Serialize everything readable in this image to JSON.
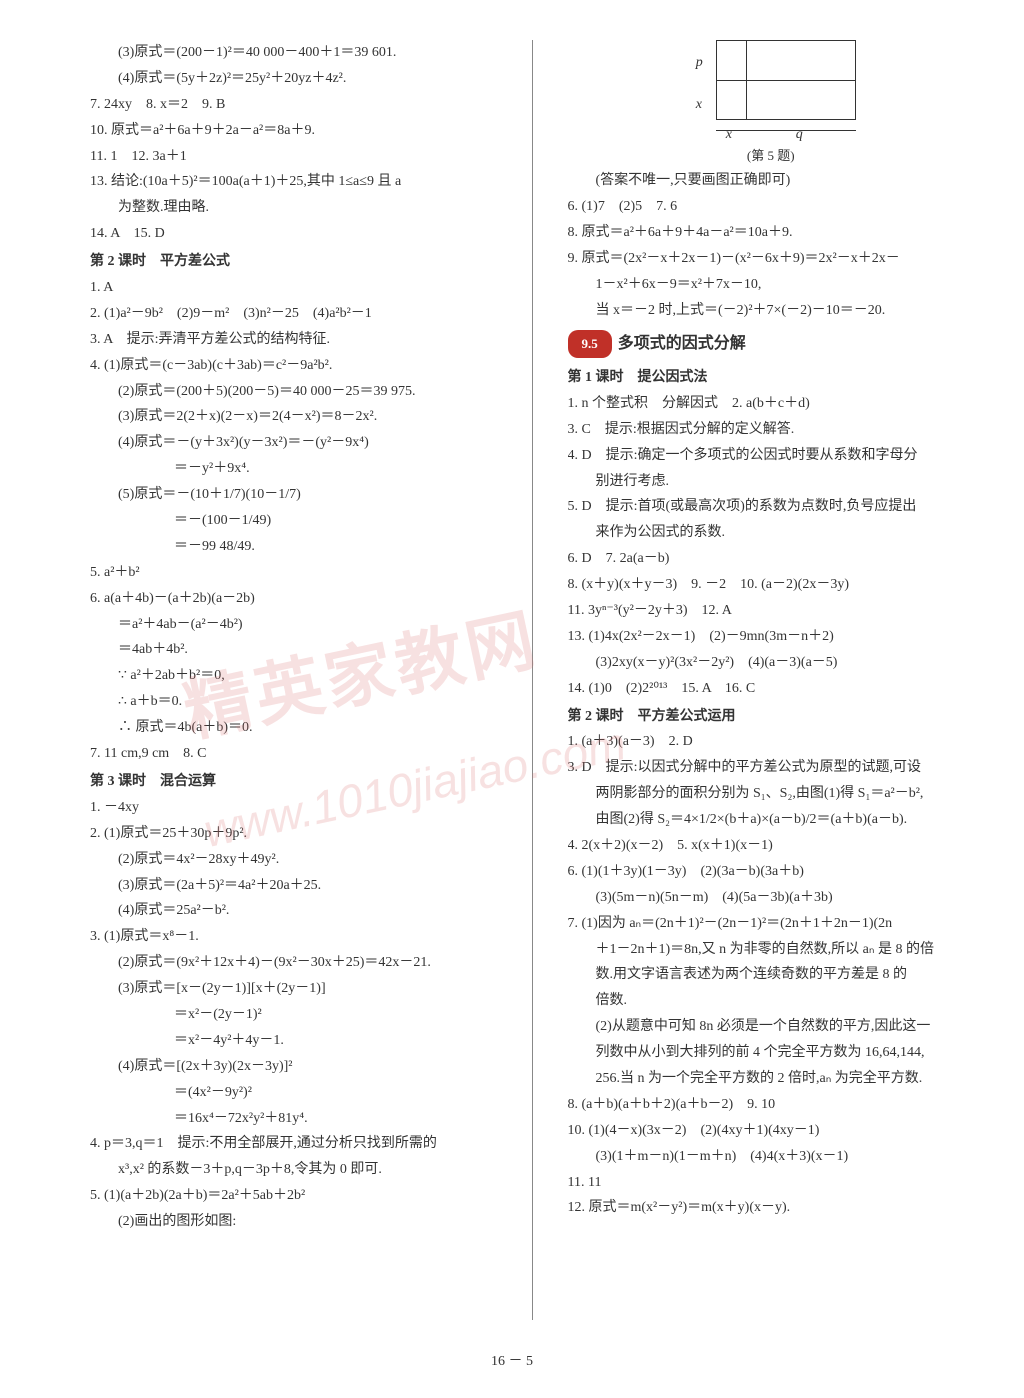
{
  "watermark_main": "精英家教网",
  "watermark_url": "www.1010jiajiao.com",
  "page_number": "16 － 5",
  "diagram": {
    "caption": "(第 5 题)",
    "p": "p",
    "x": "x",
    "q": "q"
  },
  "left_col": [
    {
      "t": "(3)原式＝(200－1)²＝40 000－400＋1＝39 601.",
      "c": "indent"
    },
    {
      "t": "(4)原式＝(5y＋2z)²＝25y²＋20yz＋4z².",
      "c": "indent"
    },
    {
      "t": "7. 24xy　8. x＝2　9. B"
    },
    {
      "t": "10. 原式＝a²＋6a＋9＋2a－a²＝8a＋9."
    },
    {
      "t": "11. 1　12. 3a＋1"
    },
    {
      "t": "13. 结论:(10a＋5)²＝100a(a＋1)＋25,其中 1≤a≤9 且 a"
    },
    {
      "t": "为整数.理由略.",
      "c": "indent"
    },
    {
      "t": "14. A　15. D"
    },
    {
      "t": "第 2 课时　平方差公式",
      "c": "section-hdr"
    },
    {
      "t": "1. A"
    },
    {
      "t": "2. (1)a²－9b²　(2)9－m²　(3)n²－25　(4)a²b²－1"
    },
    {
      "t": "3. A　提示:弄清平方差公式的结构特征."
    },
    {
      "t": "4. (1)原式＝(c－3ab)(c＋3ab)＝c²－9a²b²."
    },
    {
      "t": "(2)原式＝(200＋5)(200－5)＝40 000－25＝39 975.",
      "c": "indent"
    },
    {
      "t": "(3)原式＝2(2＋x)(2－x)＝2(4－x²)＝8－2x².",
      "c": "indent"
    },
    {
      "t": "(4)原式＝－(y＋3x²)(y－3x²)＝－(y²－9x⁴)",
      "c": "indent"
    },
    {
      "t": "＝－y²＋9x⁴.",
      "c": "indent3"
    },
    {
      "t": "(5)原式＝－(10＋1/7)(10－1/7)",
      "c": "indent"
    },
    {
      "t": "＝－(100－1/49)",
      "c": "indent3"
    },
    {
      "t": "＝－99 48/49.",
      "c": "indent3"
    },
    {
      "t": "5. a²＋b²"
    },
    {
      "t": "6. a(a＋4b)－(a＋2b)(a－2b)"
    },
    {
      "t": "＝a²＋4ab－(a²－4b²)",
      "c": "indent"
    },
    {
      "t": "＝4ab＋4b².",
      "c": "indent"
    },
    {
      "t": "∵ a²＋2ab＋b²＝0,",
      "c": "indent"
    },
    {
      "t": "∴ a＋b＝0.",
      "c": "indent"
    },
    {
      "t": "∴ 原式＝4b(a＋b)＝0.",
      "c": "indent"
    },
    {
      "t": "7. 11 cm,9 cm　8. C"
    },
    {
      "t": "第 3 课时　混合运算",
      "c": "section-hdr"
    },
    {
      "t": "1. －4xy"
    },
    {
      "t": "2. (1)原式＝25＋30p＋9p²."
    },
    {
      "t": "(2)原式＝4x²－28xy＋49y².",
      "c": "indent"
    },
    {
      "t": "(3)原式＝(2a＋5)²＝4a²＋20a＋25.",
      "c": "indent"
    },
    {
      "t": "(4)原式＝25a²－b².",
      "c": "indent"
    },
    {
      "t": "3. (1)原式＝x⁸－1."
    },
    {
      "t": "(2)原式＝(9x²＋12x＋4)－(9x²－30x＋25)＝42x－21.",
      "c": "indent"
    },
    {
      "t": "(3)原式＝[x－(2y－1)][x＋(2y－1)]",
      "c": "indent"
    },
    {
      "t": "＝x²－(2y－1)²",
      "c": "indent3"
    },
    {
      "t": "＝x²－4y²＋4y－1.",
      "c": "indent3"
    },
    {
      "t": "(4)原式＝[(2x＋3y)(2x－3y)]²",
      "c": "indent"
    },
    {
      "t": "＝(4x²－9y²)²",
      "c": "indent3"
    },
    {
      "t": "＝16x⁴－72x²y²＋81y⁴.",
      "c": "indent3"
    },
    {
      "t": "4. p＝3,q＝1　提示:不用全部展开,通过分析只找到所需的"
    },
    {
      "t": "x³,x² 的系数－3＋p,q－3p＋8,令其为 0 即可.",
      "c": "indent"
    },
    {
      "t": "5. (1)(a＋2b)(2a＋b)＝2a²＋5ab＋2b²"
    },
    {
      "t": "(2)画出的图形如图:",
      "c": "indent"
    }
  ],
  "right_col": [
    {
      "t": "(答案不唯一,只要画图正确即可)",
      "c": "indent"
    },
    {
      "t": "6. (1)7　(2)5　7. 6"
    },
    {
      "t": "8. 原式＝a²＋6a＋9＋4a－a²＝10a＋9."
    },
    {
      "t": "9. 原式＝(2x²－x＋2x－1)－(x²－6x＋9)＝2x²－x＋2x－"
    },
    {
      "t": "1－x²＋6x－9＝x²＋7x－10,",
      "c": "indent"
    },
    {
      "t": "当 x＝－2 时,上式＝(－2)²＋7×(－2)－10＝－20.",
      "c": "indent"
    },
    {
      "t": "RED_TITLE"
    },
    {
      "t": "第 1 课时　提公因式法",
      "c": "section-hdr"
    },
    {
      "t": "1. n 个整式积　分解因式　2. a(b＋c＋d)"
    },
    {
      "t": "3. C　提示:根据因式分解的定义解答."
    },
    {
      "t": "4. D　提示:确定一个多项式的公因式时要从系数和字母分"
    },
    {
      "t": "别进行考虑.",
      "c": "indent"
    },
    {
      "t": "5. D　提示:首项(或最高次项)的系数为点数时,负号应提出"
    },
    {
      "t": "来作为公因式的系数.",
      "c": "indent"
    },
    {
      "t": "6. D　7. 2a(a－b)"
    },
    {
      "t": "8. (x＋y)(x＋y－3)　9. －2　10. (a－2)(2x－3y)"
    },
    {
      "t": "11. 3yⁿ⁻³(y²－2y＋3)　12. A"
    },
    {
      "t": "13. (1)4x(2x²－2x－1)　(2)－9mn(3m－n＋2)"
    },
    {
      "t": "(3)2xy(x－y)²(3x²－2y²)　(4)(a－3)(a－5)",
      "c": "indent"
    },
    {
      "t": "14. (1)0　(2)2²⁰¹³　15. A　16. C"
    },
    {
      "t": "第 2 课时　平方差公式运用",
      "c": "section-hdr"
    },
    {
      "t": "1. (a＋3)(a－3)　2. D"
    },
    {
      "t": "3. D　提示:以因式分解中的平方差公式为原型的试题,可设"
    },
    {
      "t": "两阴影部分的面积分别为 S₁、S₂,由图(1)得 S₁＝a²－b²,",
      "c": "indent"
    },
    {
      "t": "由图(2)得 S₂＝4×1/2×(b＋a)×(a－b)/2＝(a＋b)(a－b).",
      "c": "indent"
    },
    {
      "t": "4. 2(x＋2)(x－2)　5. x(x＋1)(x－1)"
    },
    {
      "t": "6. (1)(1＋3y)(1－3y)　(2)(3a－b)(3a＋b)"
    },
    {
      "t": "(3)(5m－n)(5n－m)　(4)(5a－3b)(a＋3b)",
      "c": "indent"
    },
    {
      "t": "7. (1)因为 aₙ＝(2n＋1)²－(2n－1)²＝(2n＋1＋2n－1)(2n"
    },
    {
      "t": "＋1－2n＋1)＝8n,又 n 为非零的自然数,所以 aₙ 是 8 的倍",
      "c": "indent"
    },
    {
      "t": "数.用文字语言表述为两个连续奇数的平方差是 8 的",
      "c": "indent"
    },
    {
      "t": "倍数.",
      "c": "indent"
    },
    {
      "t": "(2)从题意中可知 8n 必须是一个自然数的平方,因此这一",
      "c": "indent"
    },
    {
      "t": "列数中从小到大排列的前 4 个完全平方数为 16,64,144,",
      "c": "indent"
    },
    {
      "t": "256.当 n 为一个完全平方数的 2 倍时,aₙ 为完全平方数.",
      "c": "indent"
    },
    {
      "t": "8. (a＋b)(a＋b＋2)(a＋b－2)　9. 10"
    },
    {
      "t": "10. (1)(4－x)(3x－2)　(2)(4xy＋1)(4xy－1)"
    },
    {
      "t": "(3)(1＋m－n)(1－m＋n)　(4)4(x＋3)(x－1)",
      "c": "indent"
    },
    {
      "t": "11. 11"
    },
    {
      "t": "12. 原式＝m(x²－y²)＝m(x＋y)(x－y)."
    }
  ],
  "red_title": {
    "badge": "9.5",
    "text": "多项式的因式分解"
  }
}
